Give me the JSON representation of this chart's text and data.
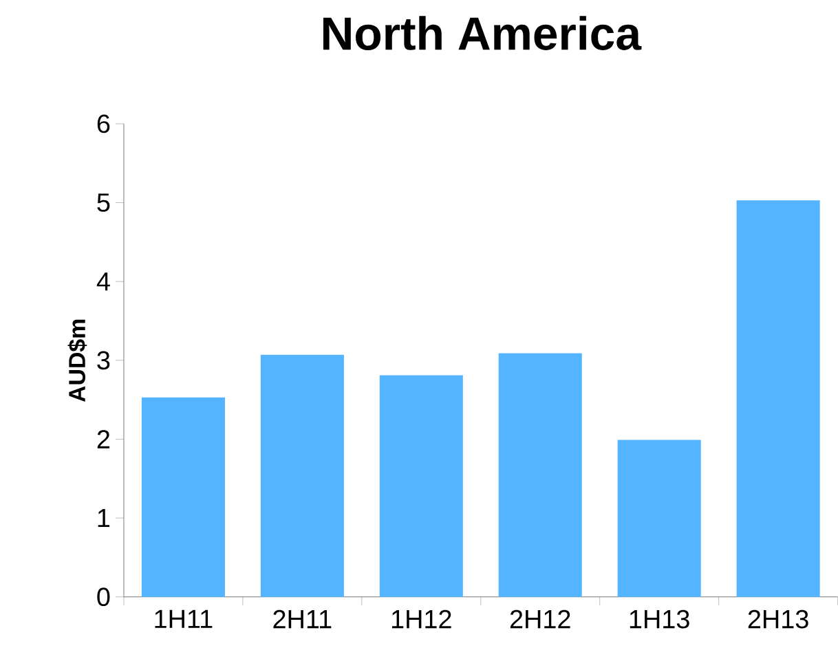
{
  "chart_data": {
    "type": "bar",
    "title": "North America",
    "ylabel": "AUD$m",
    "categories": [
      "1H11",
      "2H11",
      "1H12",
      "2H12",
      "1H13",
      "2H13"
    ],
    "values": [
      2.53,
      3.07,
      2.81,
      3.09,
      1.99,
      5.03
    ],
    "color": "#55b4ff",
    "ylim": [
      0,
      6
    ],
    "yticks": [
      0,
      1,
      2,
      3,
      4,
      5,
      6
    ]
  }
}
